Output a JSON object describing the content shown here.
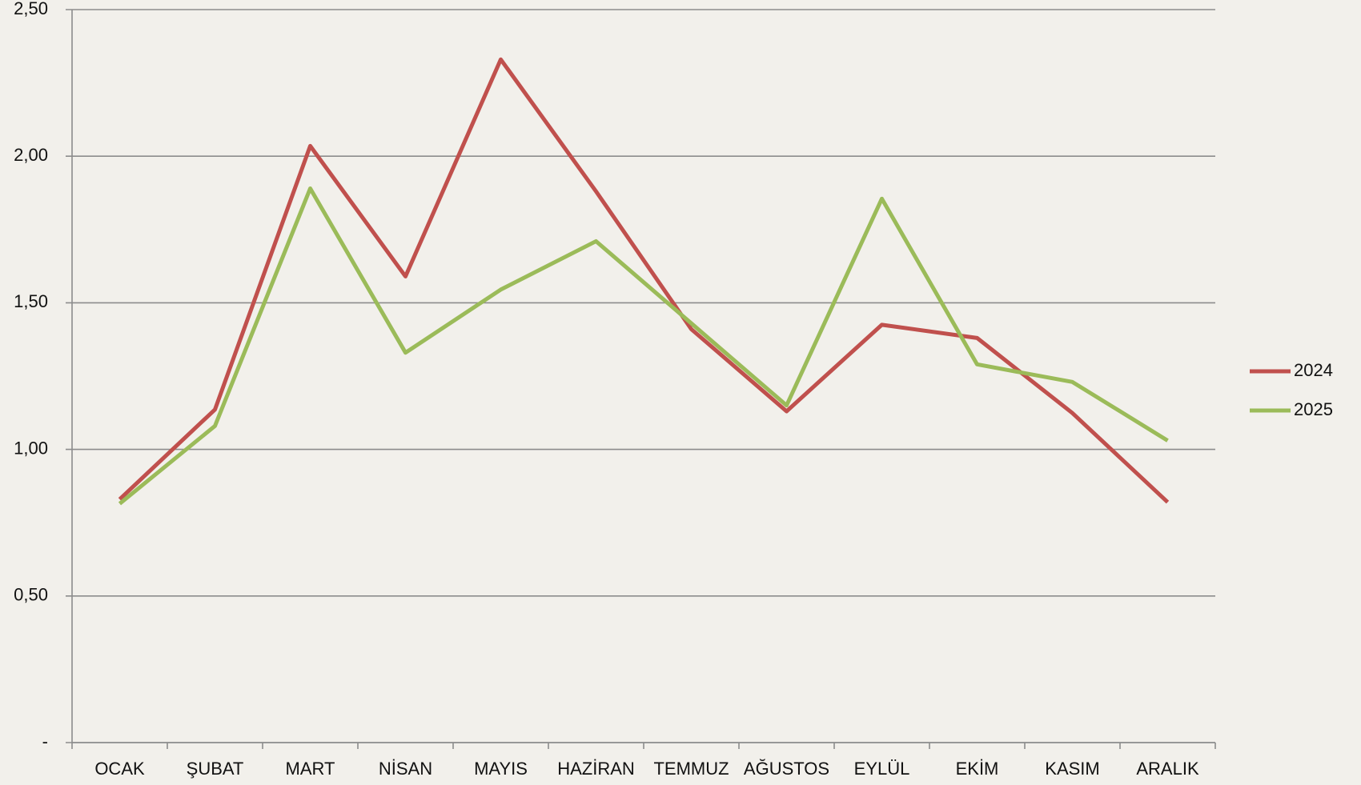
{
  "chart_data": {
    "type": "line",
    "categories": [
      "OCAK",
      "ŞUBAT",
      "MART",
      "NİSAN",
      "MAYIS",
      "HAZİRAN",
      "TEMMUZ",
      "AĞUSTOS",
      "EYLÜL",
      "EKİM",
      "KASIM",
      "ARALIK"
    ],
    "series": [
      {
        "name": "2024",
        "color": "#c0504d",
        "values": [
          0.83,
          1.136,
          2.035,
          1.59,
          2.33,
          1.88,
          1.41,
          1.13,
          1.425,
          1.38,
          1.124,
          0.82
        ]
      },
      {
        "name": "2025",
        "color": "#9bbb59",
        "values": [
          0.815,
          1.08,
          1.89,
          1.33,
          1.545,
          1.71,
          1.43,
          1.15,
          1.855,
          1.29,
          1.23,
          1.03
        ]
      }
    ],
    "ylim": [
      0,
      2.5
    ],
    "yticks": [
      {
        "value": 0,
        "label": "-"
      },
      {
        "value": 0.5,
        "label": "0,50"
      },
      {
        "value": 1,
        "label": "1,00"
      },
      {
        "value": 1.5,
        "label": "1,50"
      },
      {
        "value": 2,
        "label": "2,00"
      },
      {
        "value": 2.5,
        "label": "2,50"
      }
    ],
    "grid": true,
    "legend": "right"
  }
}
